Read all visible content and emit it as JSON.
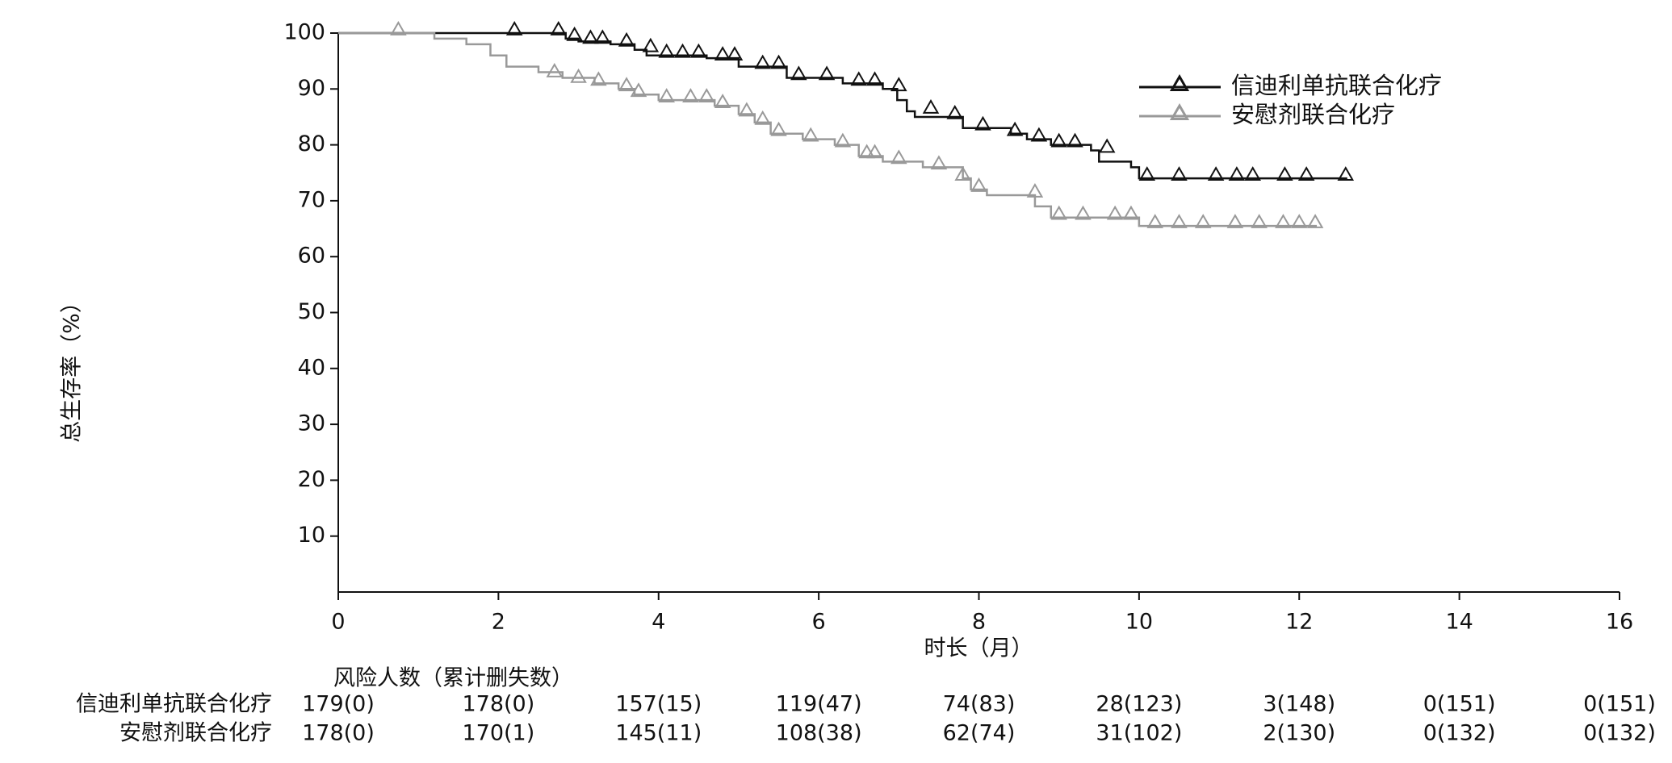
{
  "chart_data": {
    "type": "km",
    "ylabel": "总生存率（%）",
    "xlabel": "时长（月）",
    "xlim": [
      0,
      16
    ],
    "xticks": [
      0,
      2,
      4,
      6,
      8,
      10,
      12,
      14,
      16
    ],
    "ylim": [
      0,
      100
    ],
    "yticks": [
      10,
      20,
      30,
      40,
      50,
      60,
      70,
      80,
      90,
      100
    ],
    "legend": "upper right",
    "series": [
      {
        "name": "信迪利单抗联合化疗",
        "color": "#111111",
        "x": [
          0,
          2.84,
          3.0,
          3.4,
          3.7,
          3.85,
          4.6,
          5.0,
          5.6,
          6.3,
          6.8,
          6.98,
          7.1,
          7.2,
          7.8,
          8.4,
          8.6,
          8.9,
          9.4,
          9.5,
          9.9,
          10.0,
          12.6
        ],
        "values": [
          100,
          99,
          98.5,
          98,
          97,
          96,
          95.5,
          94,
          92,
          91,
          90,
          88,
          86,
          85,
          83,
          82,
          81,
          80,
          79,
          77,
          76,
          74,
          74
        ],
        "censor_x": [
          2.2,
          2.75,
          2.95,
          3.15,
          3.3,
          3.6,
          3.9,
          4.1,
          4.3,
          4.5,
          4.8,
          4.95,
          5.3,
          5.5,
          5.75,
          6.1,
          6.5,
          6.7,
          7.0,
          7.4,
          7.7,
          8.05,
          8.45,
          8.75,
          9.0,
          9.2,
          9.6,
          10.1,
          10.5,
          10.96,
          11.22,
          11.42,
          11.82,
          12.09,
          12.58
        ],
        "censor_values": [
          100,
          100,
          99,
          98.5,
          98.5,
          98,
          97,
          96,
          96,
          96,
          95.5,
          95.5,
          94,
          94,
          92,
          92,
          91,
          91,
          90,
          86,
          85,
          83,
          82,
          81,
          80,
          80,
          79,
          74,
          74,
          74,
          74,
          74,
          74,
          74,
          74
        ]
      },
      {
        "name": "安慰剂联合化疗",
        "color": "#999999",
        "x": [
          0,
          1.2,
          1.6,
          1.9,
          2.1,
          2.5,
          2.8,
          3.2,
          3.5,
          3.7,
          4.0,
          4.7,
          5.0,
          5.2,
          5.4,
          5.8,
          6.2,
          6.5,
          6.8,
          7.3,
          7.8,
          7.9,
          8.1,
          8.7,
          8.9,
          10.0,
          12.22
        ],
        "values": [
          100,
          99,
          98,
          96,
          94,
          93,
          92,
          91,
          90,
          89,
          88,
          87,
          85.5,
          84,
          82,
          81,
          80,
          78,
          77,
          76,
          74,
          72,
          71,
          69,
          67,
          65.5,
          65.5
        ],
        "censor_x": [
          0.75,
          2.7,
          3.0,
          3.25,
          3.6,
          3.75,
          4.1,
          4.4,
          4.6,
          4.8,
          5.1,
          5.3,
          5.5,
          5.9,
          6.3,
          6.6,
          6.7,
          7.0,
          7.5,
          7.8,
          8.0,
          8.7,
          9.0,
          9.3,
          9.7,
          9.9,
          10.2,
          10.5,
          10.8,
          11.2,
          11.5,
          11.8,
          12.0,
          12.2
        ],
        "censor_values": [
          100,
          92.5,
          91.5,
          91,
          90,
          89,
          88,
          88,
          88,
          87,
          85.5,
          84,
          82,
          81,
          80,
          78,
          78,
          77,
          76,
          74,
          72,
          71,
          67,
          67,
          67,
          67,
          65.5,
          65.5,
          65.5,
          65.5,
          65.5,
          65.5,
          65.5,
          65.5
        ]
      }
    ],
    "risk_table": {
      "title": "风险人数（累计删失数）",
      "rows": [
        {
          "name": "信迪利单抗联合化疗",
          "labels": [
            "179(0)",
            "178(0)",
            "157(15)",
            "119(47)",
            "74(83)",
            "28(123)",
            "3(148)",
            "0(151)",
            "0(151)"
          ]
        },
        {
          "name": "安慰剂联合化疗",
          "labels": [
            "178(0)",
            "170(1)",
            "145(11)",
            "108(38)",
            "62(74)",
            "31(102)",
            "2(130)",
            "0(132)",
            "0(132)"
          ]
        }
      ]
    }
  }
}
